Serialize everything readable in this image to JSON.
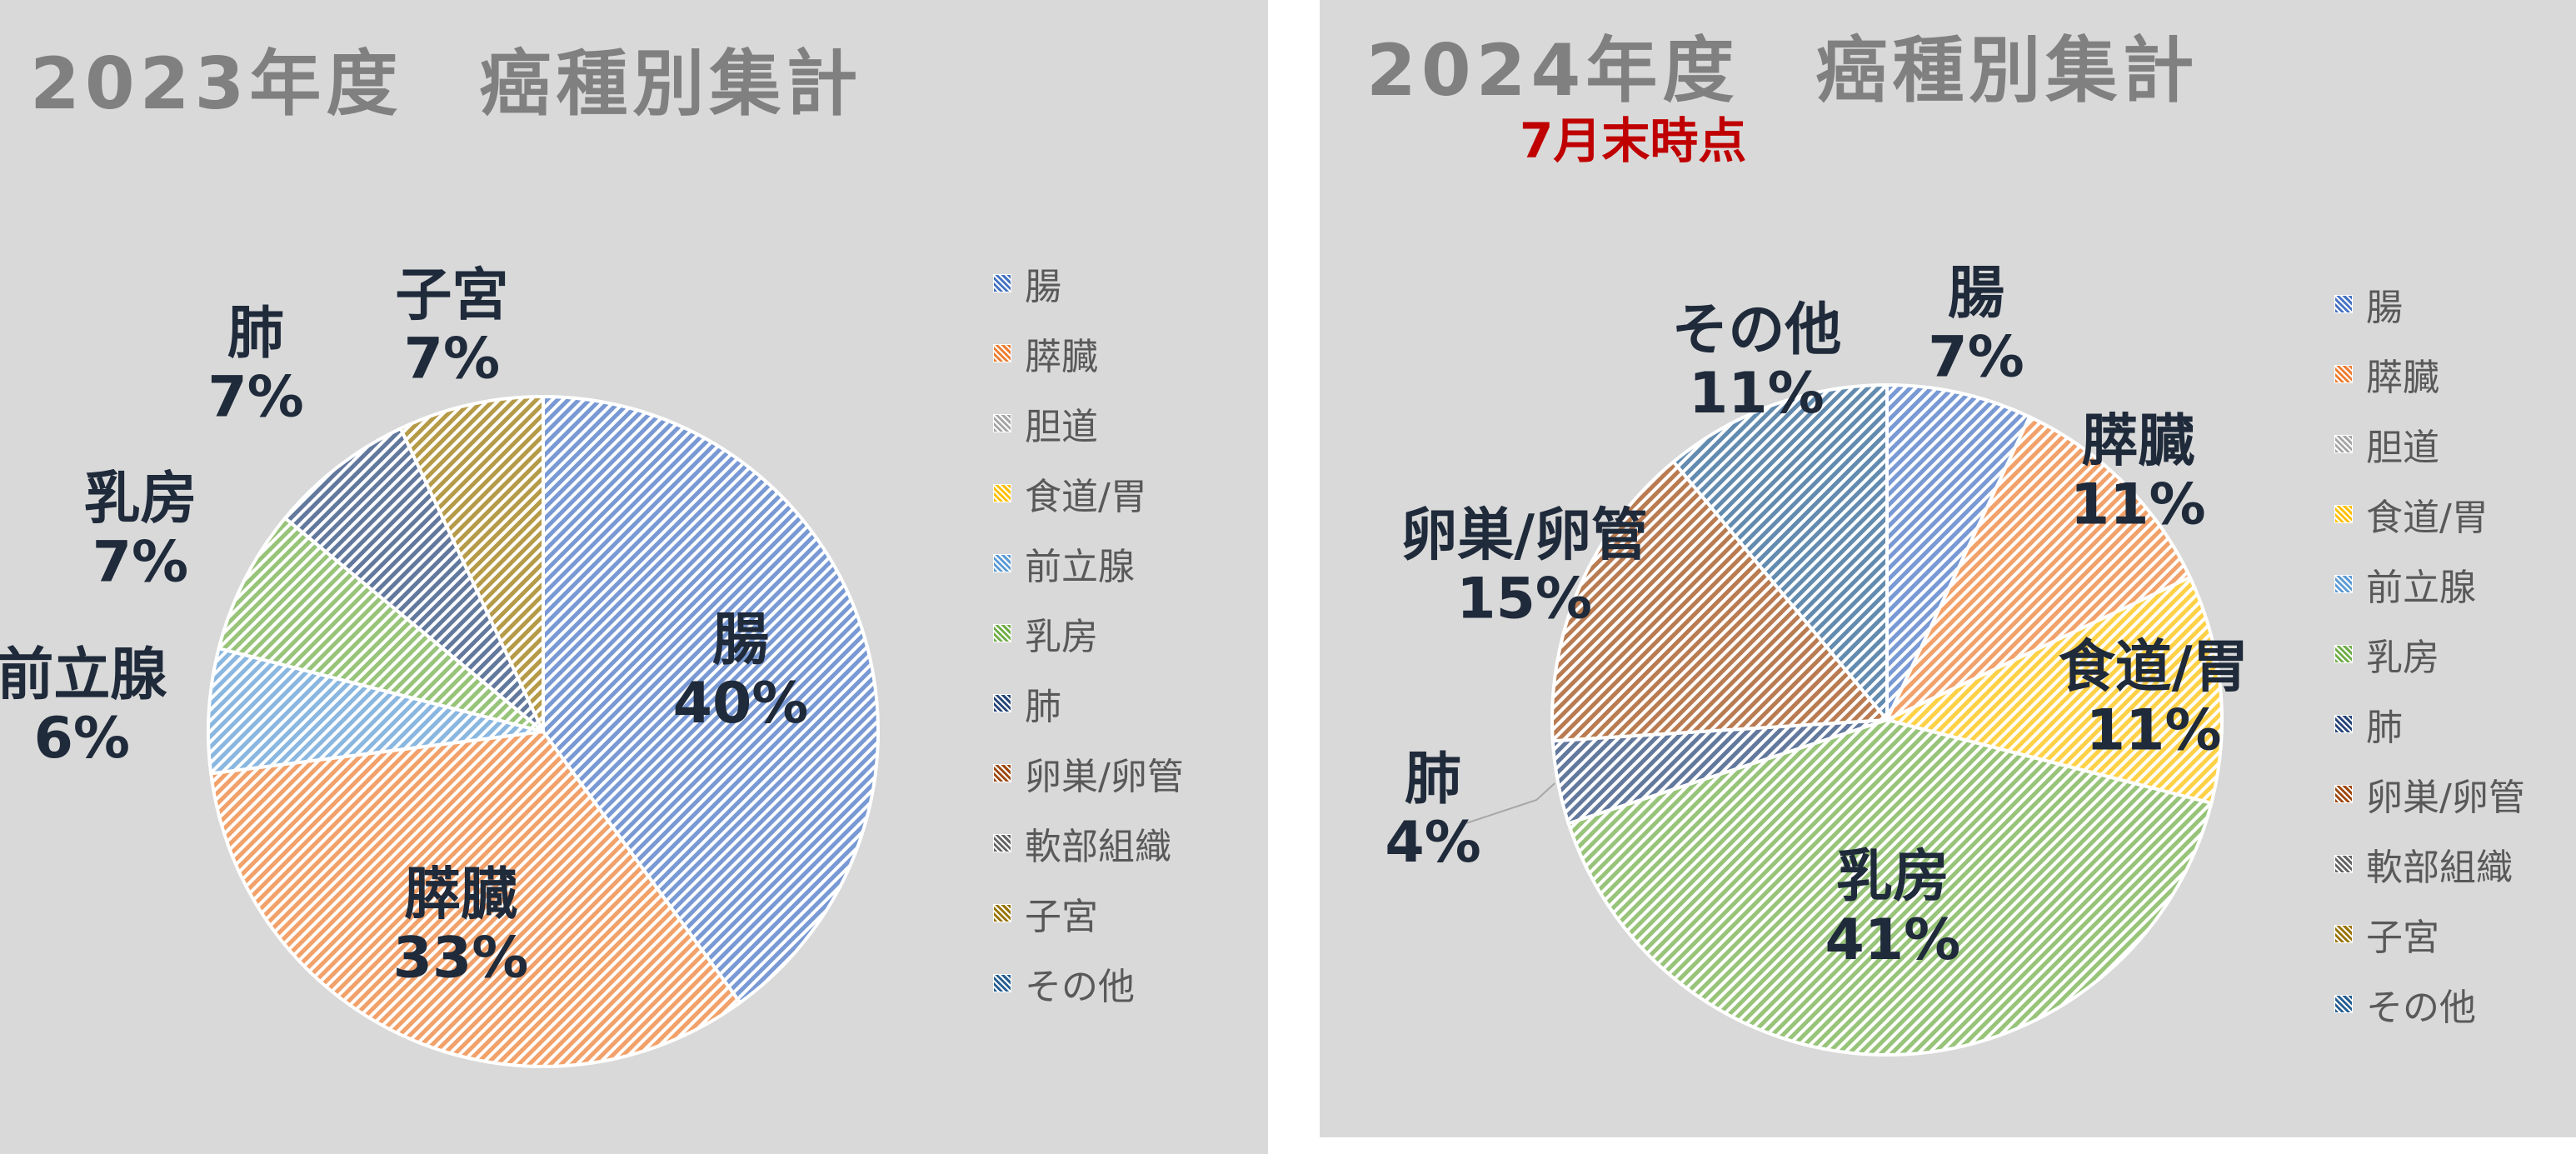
{
  "colors": {
    "腸": "#4472c4",
    "膵臓": "#ed7d31",
    "胆道": "#a5a5a5",
    "食道/胃": "#ffc000",
    "前立腺": "#5b9bd5",
    "乳房": "#70ad47",
    "肺": "#264478",
    "卵巣/卵管": "#9e480e",
    "軟部組織": "#636363",
    "子宮": "#997300",
    "その他": "#255e91"
  },
  "legend": [
    "腸",
    "膵臓",
    "胆道",
    "食道/胃",
    "前立腺",
    "乳房",
    "肺",
    "卵巣/卵管",
    "軟部組織",
    "子宮",
    "その他"
  ],
  "chart_data": [
    {
      "type": "pie",
      "title": "2023年度　癌種別集計",
      "subtitle": "",
      "legend_position": "right",
      "start": "12 o'clock, clockwise",
      "slices": [
        {
          "name": "腸",
          "value": 40,
          "label": "40%"
        },
        {
          "name": "膵臓",
          "value": 33,
          "label": "33%"
        },
        {
          "name": "前立腺",
          "value": 6,
          "label": "6%"
        },
        {
          "name": "乳房",
          "value": 7,
          "label": "7%"
        },
        {
          "name": "肺",
          "value": 7,
          "label": "7%"
        },
        {
          "name": "子宮",
          "value": 7,
          "label": "7%"
        }
      ]
    },
    {
      "type": "pie",
      "title": "2024年度　癌種別集計",
      "subtitle": "7月末時点",
      "legend_position": "right",
      "start": "12 o'clock, clockwise",
      "slices": [
        {
          "name": "腸",
          "value": 7,
          "label": "7%"
        },
        {
          "name": "膵臓",
          "value": 11,
          "label": "11%"
        },
        {
          "name": "食道/胃",
          "value": 11,
          "label": "11%"
        },
        {
          "name": "乳房",
          "value": 41,
          "label": "41%"
        },
        {
          "name": "肺",
          "value": 4,
          "label": "4%"
        },
        {
          "name": "卵巣/卵管",
          "value": 15,
          "label": "15%"
        },
        {
          "name": "その他",
          "value": 11,
          "label": "11%"
        }
      ]
    }
  ]
}
